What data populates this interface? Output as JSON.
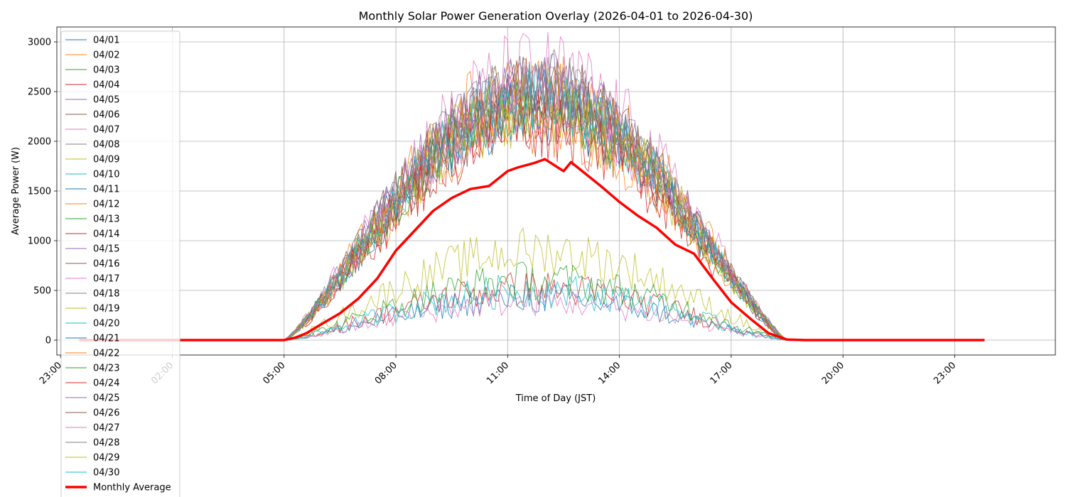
{
  "chart_data": {
    "type": "line",
    "title": "Monthly Solar Power Generation Overlay (2026-04-01 to 2026-04-30)",
    "xlabel": "Time of Day (JST)",
    "ylabel": "Average Power (W)",
    "x_unit": "hours",
    "xlim": [
      -1.1,
      25.7
    ],
    "ylim": [
      -150,
      3150
    ],
    "x_ticks": [
      {
        "value": -1,
        "label": "23:00"
      },
      {
        "value": 2,
        "label": "02:00"
      },
      {
        "value": 5,
        "label": "05:00"
      },
      {
        "value": 8,
        "label": "08:00"
      },
      {
        "value": 11,
        "label": "11:00"
      },
      {
        "value": 14,
        "label": "14:00"
      },
      {
        "value": 17,
        "label": "17:00"
      },
      {
        "value": 20,
        "label": "20:00"
      },
      {
        "value": 23,
        "label": "23:00"
      }
    ],
    "y_ticks": [
      {
        "value": 0,
        "label": "0"
      },
      {
        "value": 500,
        "label": "500"
      },
      {
        "value": 1000,
        "label": "1000"
      },
      {
        "value": 1500,
        "label": "1500"
      },
      {
        "value": 2000,
        "label": "2000"
      },
      {
        "value": 2500,
        "label": "2500"
      },
      {
        "value": 3000,
        "label": "3000"
      }
    ],
    "grid": true,
    "legend_position": "upper-left",
    "daily_series": [
      {
        "name": "04/01",
        "peak": 2350,
        "noise": 380,
        "color": "#1f77b4"
      },
      {
        "name": "04/02",
        "peak": 2600,
        "noise": 420,
        "color": "#ff7f0e"
      },
      {
        "name": "04/03",
        "peak": 2450,
        "noise": 300,
        "color": "#2ca02c"
      },
      {
        "name": "04/04",
        "peak": 520,
        "noise": 180,
        "color": "#d62728"
      },
      {
        "name": "04/05",
        "peak": 2500,
        "noise": 320,
        "color": "#9467bd"
      },
      {
        "name": "04/06",
        "peak": 2300,
        "noise": 350,
        "color": "#8c564b"
      },
      {
        "name": "04/07",
        "peak": 2700,
        "noise": 450,
        "color": "#e377c2"
      },
      {
        "name": "04/08",
        "peak": 2550,
        "noise": 280,
        "color": "#7f7f7f"
      },
      {
        "name": "04/09",
        "peak": 900,
        "noise": 250,
        "color": "#bcbd22"
      },
      {
        "name": "04/10",
        "peak": 2400,
        "noise": 330,
        "color": "#17becf"
      },
      {
        "name": "04/11",
        "peak": 420,
        "noise": 160,
        "color": "#1f77b4"
      },
      {
        "name": "04/12",
        "peak": 2250,
        "noise": 400,
        "color": "#ff7f0e"
      },
      {
        "name": "04/13",
        "peak": 600,
        "noise": 200,
        "color": "#2ca02c"
      },
      {
        "name": "04/14",
        "peak": 2350,
        "noise": 380,
        "color": "#d62728"
      },
      {
        "name": "04/15",
        "peak": 2450,
        "noise": 360,
        "color": "#9467bd"
      },
      {
        "name": "04/16",
        "peak": 2500,
        "noise": 340,
        "color": "#8c564b"
      },
      {
        "name": "04/17",
        "peak": 380,
        "noise": 140,
        "color": "#e377c2"
      },
      {
        "name": "04/18",
        "peak": 2600,
        "noise": 300,
        "color": "#7f7f7f"
      },
      {
        "name": "04/19",
        "peak": 2400,
        "noise": 420,
        "color": "#bcbd22"
      },
      {
        "name": "04/20",
        "peak": 500,
        "noise": 180,
        "color": "#17becf"
      },
      {
        "name": "04/21",
        "peak": 2300,
        "noise": 350,
        "color": "#1f77b4"
      },
      {
        "name": "04/22",
        "peak": 2450,
        "noise": 380,
        "color": "#ff7f0e"
      },
      {
        "name": "04/23",
        "peak": 2350,
        "noise": 310,
        "color": "#2ca02c"
      },
      {
        "name": "04/24",
        "peak": 2200,
        "noise": 400,
        "color": "#d62728"
      },
      {
        "name": "04/25",
        "peak": 2600,
        "noise": 340,
        "color": "#9467bd"
      },
      {
        "name": "04/26",
        "peak": 2500,
        "noise": 420,
        "color": "#8c564b"
      },
      {
        "name": "04/27",
        "peak": 2400,
        "noise": 360,
        "color": "#e377c2"
      },
      {
        "name": "04/28",
        "peak": 2650,
        "noise": 300,
        "color": "#7f7f7f"
      },
      {
        "name": "04/29",
        "peak": 2300,
        "noise": 380,
        "color": "#bcbd22"
      },
      {
        "name": "04/30",
        "peak": 2450,
        "noise": 350,
        "color": "#17becf"
      }
    ],
    "daily_shape": {
      "sunrise": 5.0,
      "sunset": 18.5,
      "step_hours": 0.0833
    },
    "average_series": {
      "name": "Monthly Average",
      "color": "#ff0000",
      "x": [
        -0.5,
        5.0,
        5.3,
        5.6,
        6.0,
        6.5,
        7.0,
        7.5,
        8.0,
        8.5,
        9.0,
        9.5,
        10.0,
        10.5,
        11.0,
        11.3,
        11.7,
        12.0,
        12.5,
        12.7,
        13.0,
        13.5,
        14.0,
        14.5,
        15.0,
        15.5,
        16.0,
        16.5,
        17.0,
        17.5,
        18.0,
        18.5,
        19.0,
        23.8
      ],
      "y": [
        0,
        0,
        25,
        70,
        160,
        270,
        420,
        620,
        900,
        1100,
        1300,
        1430,
        1520,
        1550,
        1700,
        1740,
        1780,
        1820,
        1700,
        1790,
        1700,
        1550,
        1390,
        1250,
        1130,
        960,
        870,
        620,
        380,
        220,
        70,
        5,
        0,
        0
      ]
    }
  }
}
